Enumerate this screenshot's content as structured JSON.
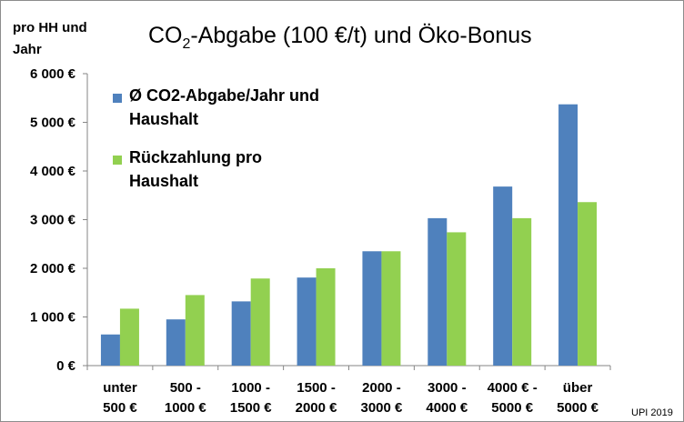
{
  "chart_data": {
    "type": "bar",
    "title_main": "CO",
    "title_sub": "2",
    "title_rest": "-Abgabe (100 €/t) und Öko-Bonus",
    "ylabel_line1": "pro HH und",
    "ylabel_line2": "Jahr",
    "xlabel": "",
    "ylim": [
      0,
      6000
    ],
    "y_ticks": [
      {
        "value": 0,
        "label": "0 €"
      },
      {
        "value": 1000,
        "label": "1 000 €"
      },
      {
        "value": 2000,
        "label": "2 000 €"
      },
      {
        "value": 3000,
        "label": "3 000 €"
      },
      {
        "value": 4000,
        "label": "4 000 €"
      },
      {
        "value": 5000,
        "label": "5 000 €"
      },
      {
        "value": 6000,
        "label": "6 000 €"
      }
    ],
    "categories": [
      [
        "unter",
        "500 €"
      ],
      [
        "500  -",
        "1000 €"
      ],
      [
        "1000 -",
        "1500 €"
      ],
      [
        "1500 -",
        "2000 €"
      ],
      [
        "2000 -",
        "3000 €"
      ],
      [
        "3000 -",
        "4000 €"
      ],
      [
        "4000 €  -",
        "5000 €"
      ],
      [
        "über",
        "5000 €"
      ]
    ],
    "series": [
      {
        "name_lines": [
          "Ø CO2-Abgabe/Jahr und",
          "Haushalt"
        ],
        "color": "#4F81BD",
        "values": [
          640,
          950,
          1320,
          1810,
          2350,
          3030,
          3680,
          5370
        ]
      },
      {
        "name_lines": [
          "Rückzahlung pro",
          "Haushalt"
        ],
        "color": "#92D050",
        "values": [
          1170,
          1450,
          1790,
          2000,
          2350,
          2740,
          3030,
          3360
        ]
      }
    ],
    "grid": false,
    "legend_position": "top-left",
    "credit": "UPI 2019"
  }
}
